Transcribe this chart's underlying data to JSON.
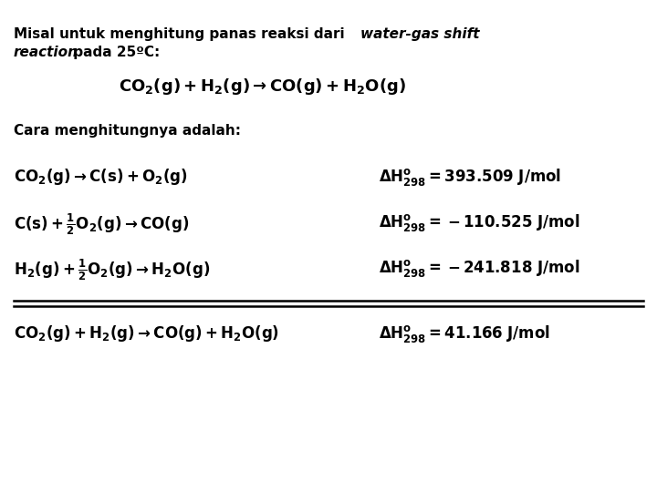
{
  "background_color": "#ffffff",
  "fig_width": 7.2,
  "fig_height": 5.4,
  "dpi": 100,
  "subheader": "Cara menghitungnya adalah:",
  "reactions": [
    "CO$\\mathbf{_2}$(g) $\\mathbf{\\rightarrow}$ C(s) + O$\\mathbf{_2}$(g)",
    "C(s) + ½O$\\mathbf{_2}$(g) $\\mathbf{\\rightarrow}$ CO(g)",
    "H$\\mathbf{_2}$(g) + ½O$\\mathbf{_2}$(g) $\\mathbf{\\rightarrow}$ H$\\mathbf{_2}$O(g)"
  ],
  "text_color": "#000000",
  "line_color": "#000000"
}
